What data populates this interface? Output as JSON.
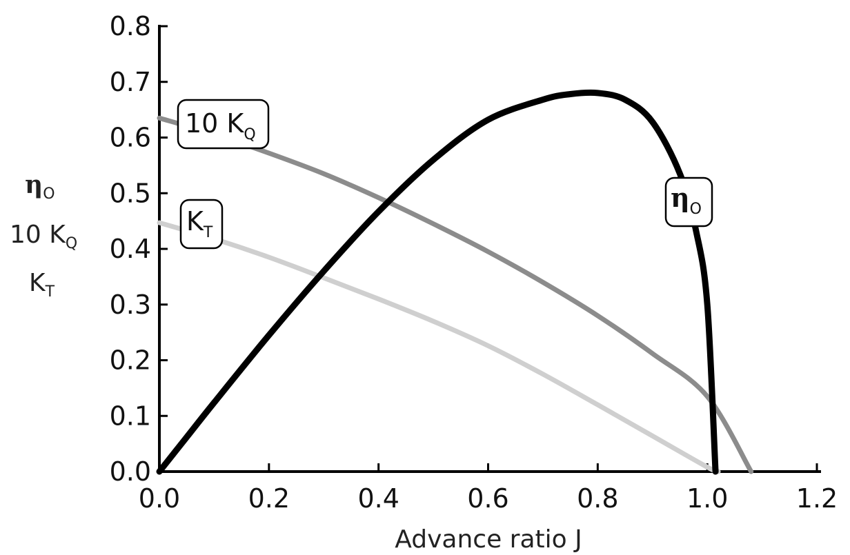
{
  "chart_data": {
    "type": "line",
    "xlabel": "Advance ratio J",
    "xlim": [
      0.0,
      1.2
    ],
    "ylim": [
      0.0,
      0.8
    ],
    "x_ticks": [
      "0.0",
      "0.2",
      "0.4",
      "0.6",
      "0.8",
      "1.0",
      "1.2"
    ],
    "y_ticks": [
      "0.0",
      "0.1",
      "0.2",
      "0.3",
      "0.4",
      "0.5",
      "0.6",
      "0.7",
      "0.8"
    ],
    "ylabel_lines": [
      {
        "main": "η",
        "sub": "O"
      },
      {
        "main": "10 K",
        "sub": "Q"
      },
      {
        "main": "K",
        "sub": "T"
      }
    ],
    "grid": false,
    "series": [
      {
        "name": "10 K_Q",
        "label_main": "10 K",
        "label_sub": "Q",
        "color": "#8c8c8c",
        "x": [
          0.0,
          0.1,
          0.2,
          0.3,
          0.4,
          0.5,
          0.6,
          0.7,
          0.8,
          0.9,
          1.0,
          1.08
        ],
        "y": [
          0.635,
          0.606,
          0.572,
          0.535,
          0.492,
          0.445,
          0.395,
          0.34,
          0.28,
          0.212,
          0.135,
          0.0
        ]
      },
      {
        "name": "K_T",
        "label_main": "K",
        "label_sub": "T",
        "color": "#cfcfcf",
        "x": [
          0.0,
          0.1,
          0.2,
          0.3,
          0.4,
          0.5,
          0.6,
          0.7,
          0.8,
          0.9,
          1.0,
          1.02
        ],
        "y": [
          0.447,
          0.418,
          0.385,
          0.348,
          0.31,
          0.27,
          0.226,
          0.175,
          0.12,
          0.064,
          0.008,
          0.0
        ]
      },
      {
        "name": "η_O",
        "label_main": "η",
        "label_sub": "O",
        "color": "#000000",
        "x": [
          0.0,
          0.05,
          0.1,
          0.2,
          0.3,
          0.4,
          0.5,
          0.6,
          0.7,
          0.75,
          0.8,
          0.85,
          0.9,
          0.95,
          0.98,
          1.0,
          1.015
        ],
        "y": [
          0.0,
          0.062,
          0.124,
          0.245,
          0.36,
          0.467,
          0.56,
          0.632,
          0.668,
          0.678,
          0.68,
          0.668,
          0.628,
          0.535,
          0.43,
          0.3,
          0.0
        ]
      }
    ]
  }
}
